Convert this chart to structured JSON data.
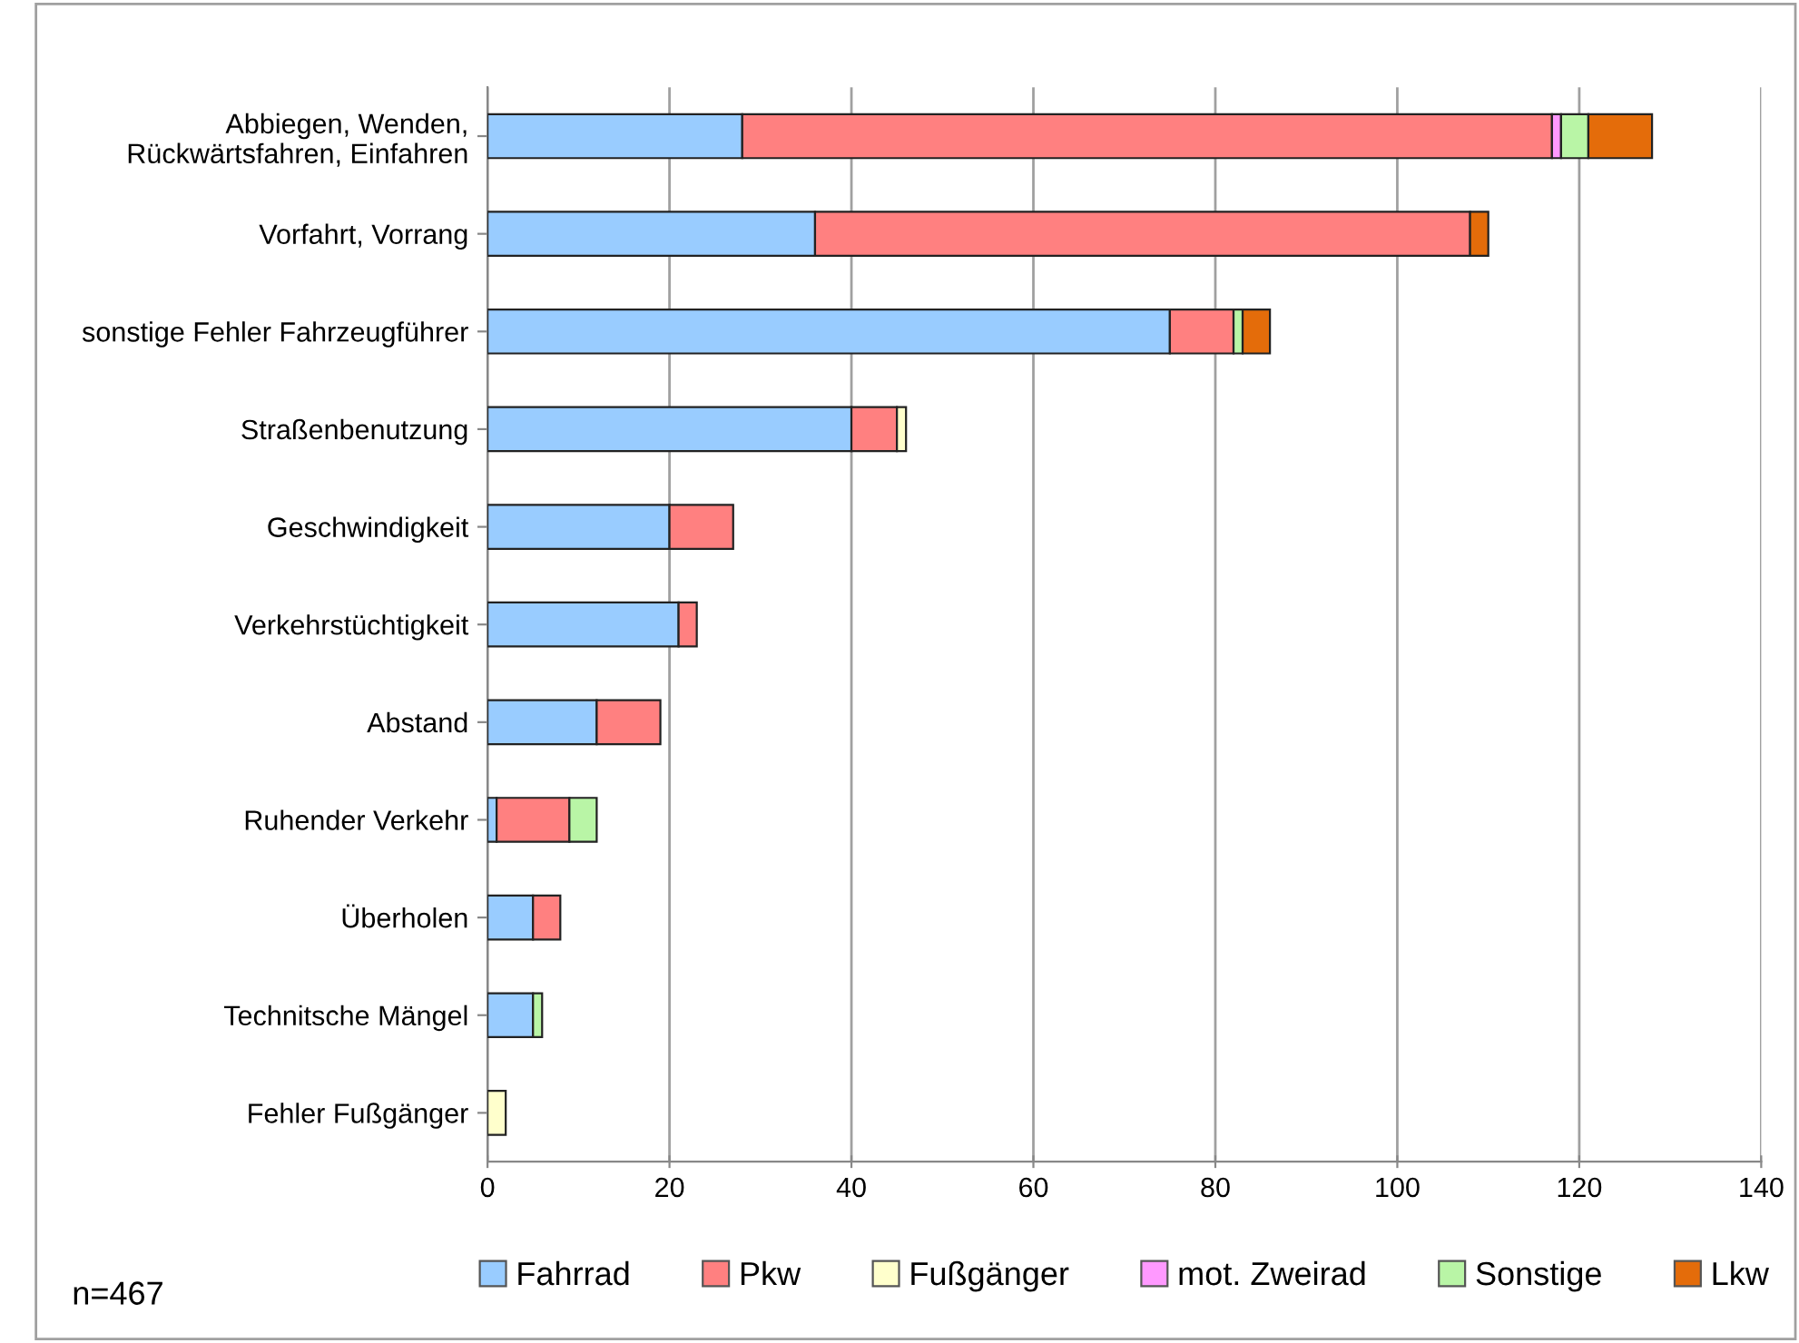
{
  "chart_data": {
    "type": "bar",
    "orientation": "horizontal",
    "stacked": true,
    "categories": [
      "Abbiegen, Wenden,\nRückwärtsfahren, Einfahren",
      "Vorfahrt, Vorrang",
      "sonstige Fehler Fahrzeugführer",
      "Straßenbenutzung",
      "Geschwindigkeit",
      "Verkehrstüchtigkeit",
      "Abstand",
      "Ruhender Verkehr",
      "Überholen",
      "Technitsche Mängel",
      "Fehler Fußgänger"
    ],
    "series": [
      {
        "name": "Fahrrad",
        "color": "#99ccff",
        "values": [
          28,
          36,
          75,
          40,
          20,
          21,
          12,
          1,
          5,
          5,
          null
        ]
      },
      {
        "name": "Pkw",
        "color": "#ff8080",
        "values": [
          89,
          72,
          7,
          5,
          7,
          2,
          7,
          8,
          3,
          null,
          null
        ]
      },
      {
        "name": "Fußgänger",
        "color": "#ffffcc",
        "values": [
          null,
          null,
          null,
          1,
          null,
          null,
          null,
          null,
          null,
          null,
          2
        ]
      },
      {
        "name": "mot. Zweirad",
        "color": "#ff99ff",
        "values": [
          1,
          null,
          null,
          null,
          null,
          null,
          null,
          null,
          null,
          null,
          null
        ]
      },
      {
        "name": "Sonstige",
        "color": "#b9f5a6",
        "values": [
          3,
          null,
          1,
          null,
          null,
          null,
          null,
          3,
          null,
          1,
          null
        ]
      },
      {
        "name": "Lkw",
        "color": "#e46c0a",
        "values": [
          7,
          2,
          3,
          null,
          null,
          null,
          null,
          null,
          null,
          null,
          null
        ]
      }
    ],
    "xlim": [
      0,
      140
    ],
    "xticks": [
      0,
      20,
      40,
      60,
      80,
      100,
      120,
      140
    ],
    "grid": "x",
    "legend": "bottom",
    "annotations": [
      "n=467"
    ]
  }
}
